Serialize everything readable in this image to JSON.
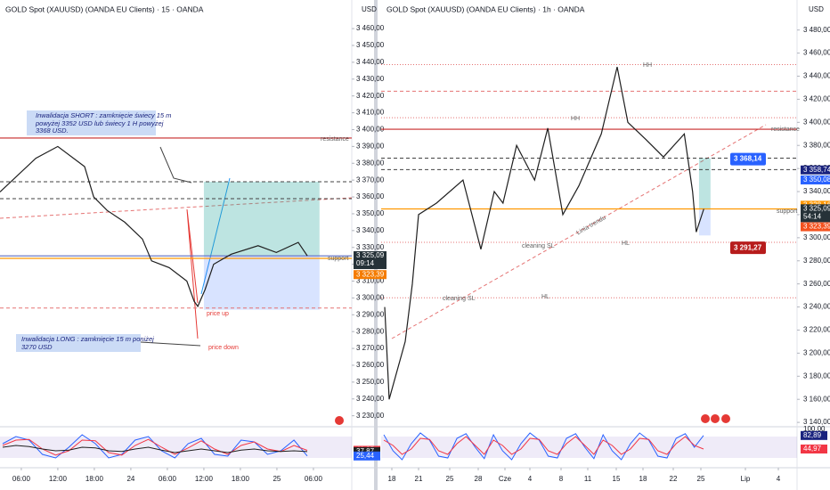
{
  "chart_data": [
    {
      "type": "line",
      "title": "GOLD Spot (XAUUSD) (OANDA EU Clients) · 15 · OANDA",
      "currency": "USD",
      "x": [
        2.5,
        8.4,
        12.0,
        16.4,
        17.9,
        20.1,
        23.0,
        25.9,
        27.4,
        30.3,
        33.2,
        34.4,
        35.0,
        36.2,
        37.6,
        40.5,
        44.9,
        47.9,
        51.5,
        53.0
      ],
      "values": [
        3363,
        3383,
        3390,
        3378,
        3360,
        3352,
        3345,
        3335,
        3322,
        3318,
        3310,
        3298,
        3295,
        3305,
        3320,
        3326,
        3331,
        3327,
        3333,
        3325
      ],
      "color": "#1e1e1e",
      "xlim": [
        2.5,
        60.3
      ],
      "xticks": [
        {
          "value": 6,
          "label": "06:00"
        },
        {
          "value": 12,
          "label": "12:00"
        },
        {
          "value": 18,
          "label": "18:00"
        },
        24,
        {
          "value": 30,
          "label": "06:00"
        },
        {
          "value": 36,
          "label": "12:00"
        },
        {
          "value": 42,
          "label": "18:00"
        },
        {
          "value": 48,
          "label": "25"
        },
        {
          "value": 54,
          "label": "06:00"
        }
      ],
      "ylim": [
        3224,
        3477
      ],
      "yticks": [
        {
          "value": 3230,
          "label": "3 230,00"
        },
        {
          "value": 3240,
          "label": "3 240,00"
        },
        {
          "value": 3250,
          "label": "3 250,00"
        },
        {
          "value": 3260,
          "label": "3 260,00"
        },
        {
          "value": 3270,
          "label": "3 270,00"
        },
        {
          "value": 3280,
          "label": "3 280,00"
        },
        {
          "value": 3290,
          "label": "3 290,00"
        },
        {
          "value": 3300,
          "label": "3 300,00"
        },
        {
          "value": 3310,
          "label": "3 310,00"
        },
        {
          "value": 3320,
          "label": "3 320,00"
        },
        {
          "value": 3330,
          "label": "3 330,00"
        },
        {
          "value": 3340,
          "label": "3 340,00"
        },
        {
          "value": 3350,
          "label": "3 350,00"
        },
        {
          "value": 3360,
          "label": "3 360,00"
        },
        {
          "value": 3370,
          "label": "3 370,00"
        },
        {
          "value": 3380,
          "label": "3 380,00"
        },
        {
          "value": 3390,
          "label": "3 390,00"
        },
        {
          "value": 3400,
          "label": "3 400,00"
        },
        {
          "value": 3410,
          "label": "3 410,00"
        },
        {
          "value": 3420,
          "label": "3 420,00"
        },
        {
          "value": 3430,
          "label": "3 430,00"
        },
        {
          "value": 3440,
          "label": "3 440,00"
        },
        {
          "value": 3450,
          "label": "3 450,00"
        },
        {
          "value": 3460,
          "label": "3 460,00"
        }
      ],
      "grid": false,
      "levels": [
        {
          "value": 3395,
          "color": "#c62828",
          "style": "solid"
        },
        {
          "value": 3369,
          "color": "#424242",
          "style": "dashed"
        },
        {
          "value": 3359,
          "color": "#424242",
          "style": "dashed"
        },
        {
          "value": 3325,
          "color": "#5c6bc0",
          "style": "solid"
        },
        {
          "value": 3323.5,
          "color": "#ff9800",
          "style": "solid"
        },
        {
          "value": 3294,
          "color": "#e57373",
          "style": "dashed"
        }
      ],
      "position": {
        "x": [
          36,
          55
        ],
        "target": 3369,
        "entry": 3325,
        "stop": 3293
      },
      "price_labels": [
        {
          "value": 3325.09,
          "label": "3 325,09",
          "sub": "09:14",
          "color": "#263238"
        },
        {
          "value": 3323.39,
          "label": "3 323,39",
          "color": "#f57c00"
        }
      ],
      "notes": [
        "Inwalidacja SHORT : zamknięcie świecy 15 m",
        "powyżej 3352 USD lub świecy 1 H powyżej",
        "3368 USD.",
        "Inwalidacja LONG : zamknięcie 15 m poniżej",
        "3270 USD",
        "price up",
        "price down",
        "resistance",
        "support"
      ],
      "oscillator": {
        "ylim": [
          0,
          100
        ],
        "band": [
          20,
          80
        ],
        "series": [
          {
            "color": "#2962ff",
            "values": [
              60,
              80,
              70,
              30,
              20,
              50,
              85,
              60,
              20,
              30,
              70,
              80,
              40,
              20,
              60,
              75,
              30,
              25,
              70,
              65,
              30,
              40,
              70,
              25.44
            ]
          },
          {
            "color": "#f23645",
            "values": [
              55,
              70,
              72,
              45,
              28,
              40,
              70,
              68,
              35,
              28,
              55,
              72,
              50,
              30,
              48,
              68,
              45,
              30,
              55,
              65,
              45,
              38,
              55,
              41.35
            ]
          },
          {
            "color": "#212121",
            "values": [
              50,
              55,
              52,
              45,
              40,
              42,
              50,
              48,
              40,
              38,
              45,
              50,
              42,
              35,
              40,
              45,
              40,
              35,
              42,
              45,
              40,
              38,
              40,
              37.87
            ]
          }
        ],
        "labels": [
          {
            "value": 41.35,
            "label": "41,35",
            "color": "#f23645"
          },
          {
            "value": 37.87,
            "label": "37,87",
            "color": "#212121"
          },
          {
            "value": 25.44,
            "label": "25,44",
            "color": "#2962ff"
          }
        ]
      }
    },
    {
      "type": "line",
      "title": "GOLD Spot (XAUUSD) (OANDA EU Clients) · 1h · OANDA",
      "currency": "USD",
      "x": [
        17.2,
        17.7,
        19.5,
        20.3,
        21,
        23.3,
        26.4,
        28.4,
        30.4,
        31.7,
        33.4,
        35.6,
        37.3,
        39.2,
        41,
        43.9,
        46.1,
        47.3,
        49.4,
        51.7,
        54.2,
        55.1,
        55.5,
        56.4
      ],
      "values": [
        3240,
        3160,
        3210,
        3260,
        3320,
        3330,
        3350,
        3290,
        3340,
        3330,
        3380,
        3350,
        3395,
        3320,
        3345,
        3390,
        3448,
        3400,
        3385,
        3370,
        3390,
        3340,
        3305,
        3325
      ],
      "color": "#1e1e1e",
      "xlim": [
        16.8,
        66.7
      ],
      "xticks": [
        18,
        21,
        25,
        28,
        {
          "value": 32,
          "label": "Cze"
        },
        {
          "value": 35,
          "label": "4"
        },
        {
          "value": 39,
          "label": "8"
        },
        {
          "value": 42,
          "label": "11"
        },
        {
          "value": 46,
          "label": "15"
        },
        {
          "value": 49,
          "label": "18"
        },
        {
          "value": 53,
          "label": "22"
        },
        {
          "value": 56,
          "label": "25"
        },
        {
          "value": 62,
          "label": "Lip"
        },
        {
          "value": 65,
          "label": "4"
        }
      ],
      "ylim": [
        3137,
        3506
      ],
      "yticks": [
        {
          "value": 3140,
          "label": "3 140,00"
        },
        {
          "value": 3160,
          "label": "3 160,00"
        },
        {
          "value": 3180,
          "label": "3 180,00"
        },
        {
          "value": 3200,
          "label": "3 200,00"
        },
        {
          "value": 3220,
          "label": "3 220,00"
        },
        {
          "value": 3240,
          "label": "3 240,00"
        },
        {
          "value": 3260,
          "label": "3 260,00"
        },
        {
          "value": 3280,
          "label": "3 280,00"
        },
        {
          "value": 3300,
          "label": "3 300,00"
        },
        {
          "value": 3320,
          "label": "3 320,00"
        },
        {
          "value": 3340,
          "label": "3 340,00"
        },
        {
          "value": 3360,
          "label": "3 360,00"
        },
        {
          "value": 3380,
          "label": "3 380,00"
        },
        {
          "value": 3400,
          "label": "3 400,00"
        },
        {
          "value": 3420,
          "label": "3 420,00"
        },
        {
          "value": 3440,
          "label": "3 440,00"
        },
        {
          "value": 3460,
          "label": "3 460,00"
        },
        {
          "value": 3480,
          "label": "3 480,00"
        }
      ],
      "grid": false,
      "levels": [
        {
          "value": 3450,
          "color": "#e57373",
          "style": "dotted"
        },
        {
          "value": 3427,
          "color": "#e57373",
          "style": "dashed"
        },
        {
          "value": 3404,
          "color": "#e57373",
          "style": "dotted"
        },
        {
          "value": 3394,
          "color": "#c62828",
          "style": "solid"
        },
        {
          "value": 3369,
          "color": "#424242",
          "style": "dashed"
        },
        {
          "value": 3359,
          "color": "#424242",
          "style": "dashed"
        },
        {
          "value": 3325,
          "color": "#ff9800",
          "style": "solid"
        },
        {
          "value": 3296,
          "color": "#e57373",
          "style": "dotted"
        },
        {
          "value": 3248,
          "color": "#e57373",
          "style": "dotted"
        }
      ],
      "position": {
        "x": [
          55.8,
          57.3
        ],
        "target": 3369,
        "entry": 3325,
        "stop": 3302
      },
      "markers": [
        {
          "value": 3368.14,
          "label": "3 368,14",
          "color": "#2962ff"
        },
        {
          "value": 3291.27,
          "label": "3 291,27",
          "color": "#b71c1c"
        }
      ],
      "price_labels": [
        {
          "value": 3358.74,
          "label": "3 358,74",
          "color": "#1a237e"
        },
        {
          "value": 3350.08,
          "label": "3 350,08",
          "color": "#2962ff"
        },
        {
          "value": 3328.16,
          "label": "3 328,16",
          "color": "#ff9800"
        },
        {
          "value": 3325.09,
          "label": "3 325,09",
          "sub": "54:14",
          "color": "#263238"
        },
        {
          "value": 3323.39,
          "label": "3 323,39",
          "color": "#f4511e"
        }
      ],
      "notes": [
        "HH",
        "HH",
        "HL",
        "HL",
        "cleaning SL",
        "cleaning SL",
        "Linia trendu",
        "resistance",
        "support"
      ],
      "oscillator": {
        "ylim": [
          0,
          100
        ],
        "band": [
          20,
          80
        ],
        "yticks": [
          {
            "value": 100,
            "label": "100,00"
          }
        ],
        "series": [
          {
            "color": "#2962ff",
            "values": [
              85,
              40,
              15,
              60,
              90,
              70,
              25,
              20,
              75,
              88,
              50,
              18,
              85,
              40,
              15,
              60,
              90,
              70,
              25,
              20,
              75,
              88,
              50,
              18,
              85,
              40,
              15,
              60,
              90,
              70,
              25,
              20,
              75,
              88,
              50,
              82.89
            ]
          },
          {
            "color": "#f23645",
            "values": [
              70,
              55,
              30,
              45,
              75,
              72,
              40,
              30,
              60,
              80,
              55,
              30,
              70,
              55,
              30,
              45,
              75,
              72,
              40,
              30,
              60,
              80,
              55,
              30,
              70,
              55,
              30,
              45,
              75,
              72,
              40,
              30,
              60,
              80,
              55,
              44.97
            ]
          }
        ],
        "labels": [
          {
            "value": 82.89,
            "label": "82,89",
            "color": "#1a237e"
          },
          {
            "value": 44.97,
            "label": "44,97",
            "color": "#f23645"
          }
        ]
      }
    }
  ]
}
